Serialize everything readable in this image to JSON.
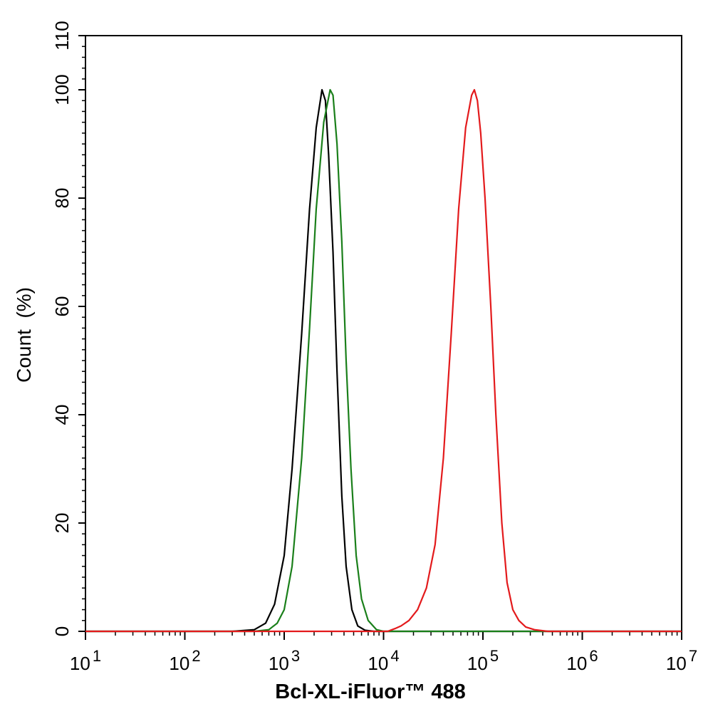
{
  "chart_data": {
    "type": "line",
    "title": "",
    "xlabel": "Bcl-XL-iFluor™ 488",
    "ylabel": "Count  (%)",
    "x_scale": "log",
    "xlim": [
      10,
      10000000
    ],
    "ylim": [
      0,
      110
    ],
    "x_tick_labels": [
      {
        "base": "10",
        "exp": "1"
      },
      {
        "base": "10",
        "exp": "2"
      },
      {
        "base": "10",
        "exp": "3"
      },
      {
        "base": "10",
        "exp": "4"
      },
      {
        "base": "10",
        "exp": "5"
      },
      {
        "base": "10",
        "exp": "6"
      },
      {
        "base": "10",
        "exp": "7"
      }
    ],
    "y_ticks": [
      0,
      20,
      40,
      60,
      80,
      100,
      110
    ],
    "grid": false,
    "legend": "none",
    "series": [
      {
        "color": "#000000",
        "points": [
          [
            10,
            0
          ],
          [
            300,
            0
          ],
          [
            500,
            0.3
          ],
          [
            650,
            1.5
          ],
          [
            800,
            5
          ],
          [
            1000,
            14
          ],
          [
            1200,
            30
          ],
          [
            1500,
            55
          ],
          [
            1800,
            78
          ],
          [
            2100,
            93
          ],
          [
            2400,
            100
          ],
          [
            2600,
            98
          ],
          [
            2800,
            88
          ],
          [
            3100,
            70
          ],
          [
            3400,
            48
          ],
          [
            3800,
            25
          ],
          [
            4200,
            12
          ],
          [
            4800,
            4
          ],
          [
            5500,
            1
          ],
          [
            6500,
            0.2
          ],
          [
            8000,
            0
          ],
          [
            10000000,
            0
          ]
        ]
      },
      {
        "color": "#1a7f1a",
        "points": [
          [
            10,
            0
          ],
          [
            500,
            0
          ],
          [
            700,
            0.3
          ],
          [
            850,
            1.5
          ],
          [
            1000,
            4
          ],
          [
            1200,
            12
          ],
          [
            1500,
            32
          ],
          [
            1800,
            56
          ],
          [
            2100,
            78
          ],
          [
            2500,
            94
          ],
          [
            2900,
            100
          ],
          [
            3100,
            99
          ],
          [
            3400,
            90
          ],
          [
            3800,
            72
          ],
          [
            4200,
            50
          ],
          [
            4700,
            30
          ],
          [
            5300,
            14
          ],
          [
            6000,
            6
          ],
          [
            7000,
            2
          ],
          [
            8500,
            0.3
          ],
          [
            10000,
            0
          ],
          [
            10000000,
            0
          ]
        ]
      },
      {
        "color": "#e31a1c",
        "points": [
          [
            10,
            0
          ],
          [
            11000,
            0
          ],
          [
            13000,
            0.5
          ],
          [
            15000,
            1
          ],
          [
            18000,
            2
          ],
          [
            22000,
            4
          ],
          [
            27000,
            8
          ],
          [
            33000,
            16
          ],
          [
            40000,
            32
          ],
          [
            48000,
            55
          ],
          [
            57000,
            78
          ],
          [
            67000,
            93
          ],
          [
            77000,
            99
          ],
          [
            82000,
            100
          ],
          [
            88000,
            98
          ],
          [
            95000,
            92
          ],
          [
            105000,
            80
          ],
          [
            120000,
            60
          ],
          [
            135000,
            40
          ],
          [
            155000,
            20
          ],
          [
            175000,
            9
          ],
          [
            200000,
            4
          ],
          [
            230000,
            2
          ],
          [
            270000,
            0.8
          ],
          [
            330000,
            0.3
          ],
          [
            450000,
            0
          ],
          [
            10000000,
            0
          ]
        ]
      }
    ]
  }
}
